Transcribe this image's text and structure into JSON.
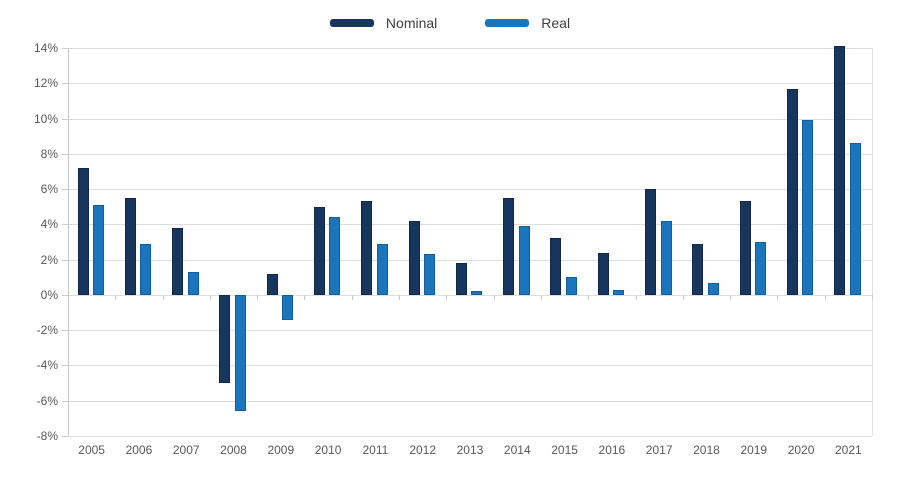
{
  "background": "#ffffff",
  "legend": [
    {
      "label": "Nominal",
      "color": "#17365d"
    },
    {
      "label": "Real",
      "color": "#1b75bc"
    }
  ],
  "y_axis": {
    "ticks": [
      {
        "value": 14,
        "label": "14%"
      },
      {
        "value": 12,
        "label": "12%"
      },
      {
        "value": 10,
        "label": "10%"
      },
      {
        "value": 8,
        "label": "8%"
      },
      {
        "value": 6,
        "label": "6%"
      },
      {
        "value": 4,
        "label": "4%"
      },
      {
        "value": 2,
        "label": "2%"
      },
      {
        "value": 0,
        "label": "0%"
      },
      {
        "value": -2,
        "label": "-2%"
      },
      {
        "value": -4,
        "label": "-4%"
      },
      {
        "value": -6,
        "label": "-6%"
      },
      {
        "value": -8,
        "label": "-8%"
      }
    ]
  },
  "chart_data": {
    "type": "bar",
    "title": "",
    "xlabel": "",
    "ylabel": "",
    "grid": true,
    "legend_position": "top-center",
    "ylim": [
      -8,
      14
    ],
    "ytick_step": 2,
    "ytick_format": "percent",
    "categories": [
      "2005",
      "2006",
      "2007",
      "2008",
      "2009",
      "2010",
      "2011",
      "2012",
      "2013",
      "2014",
      "2015",
      "2016",
      "2017",
      "2018",
      "2019",
      "2020",
      "2021"
    ],
    "series": [
      {
        "name": "Nominal",
        "color": "#17365d",
        "values": [
          7.2,
          5.5,
          3.8,
          -5.0,
          1.2,
          5.0,
          5.3,
          4.2,
          1.8,
          5.5,
          3.2,
          2.4,
          6.0,
          2.9,
          5.3,
          11.7,
          14.1
        ]
      },
      {
        "name": "Real",
        "color": "#1b75bc",
        "values": [
          5.1,
          2.9,
          1.3,
          -6.6,
          -1.4,
          4.4,
          2.9,
          2.3,
          0.2,
          3.9,
          1.0,
          0.3,
          4.2,
          0.7,
          3.0,
          9.9,
          8.6
        ]
      }
    ]
  }
}
